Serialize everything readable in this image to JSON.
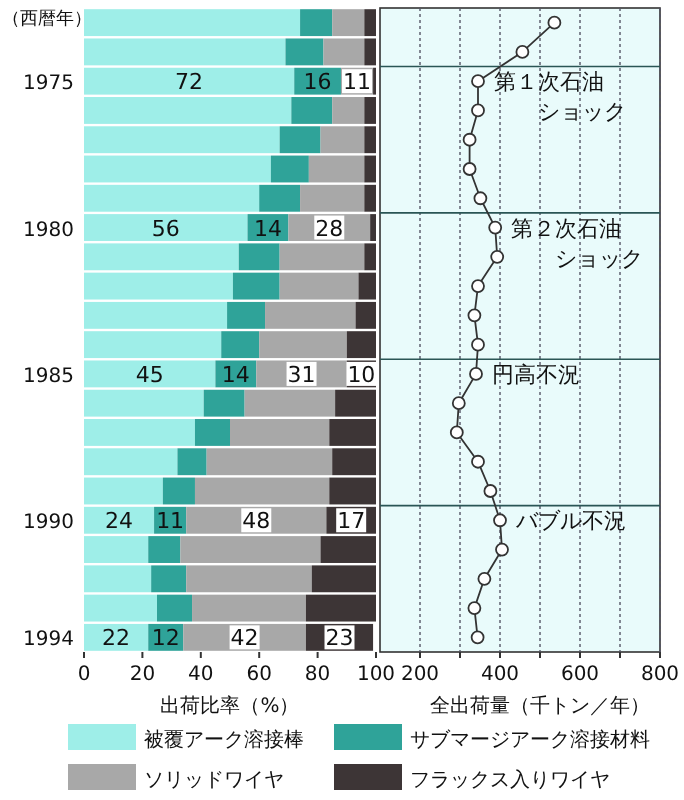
{
  "chart_data": [
    {
      "type": "bar",
      "orientation": "horizontal",
      "stacked": true,
      "ylabel": "（西暦年）",
      "xlabel": "出荷比率（%）",
      "categories": [
        null,
        null,
        "1975",
        null,
        null,
        null,
        null,
        "1980",
        null,
        null,
        null,
        null,
        "1985",
        null,
        null,
        null,
        null,
        "1990",
        null,
        null,
        null,
        "1994"
      ],
      "xlim": [
        0,
        100
      ],
      "xticks": [
        0,
        20,
        40,
        60,
        80,
        100
      ],
      "legend": "bottom",
      "series": [
        {
          "name": "被覆アーク溶接棒",
          "color": "#9eeee8",
          "values": [
            74,
            69,
            72,
            71,
            67,
            64,
            60,
            56,
            53,
            51,
            49,
            47,
            45,
            41,
            38,
            32,
            27,
            24,
            22,
            23,
            25,
            22
          ],
          "value_labels": [
            null,
            null,
            "72",
            null,
            null,
            null,
            null,
            "56",
            null,
            null,
            null,
            null,
            "45",
            null,
            null,
            null,
            null,
            "24",
            null,
            null,
            null,
            "22"
          ]
        },
        {
          "name": "サブマージアーク溶接材料",
          "color": "#2fa399",
          "values": [
            11,
            13,
            16,
            14,
            14,
            13,
            14,
            14,
            14,
            16,
            13,
            13,
            14,
            14,
            12,
            10,
            11,
            11,
            11,
            12,
            12,
            12
          ],
          "value_labels": [
            null,
            null,
            "16",
            null,
            null,
            null,
            null,
            "14",
            null,
            null,
            null,
            null,
            "14",
            null,
            null,
            null,
            null,
            "11",
            null,
            null,
            null,
            "12"
          ]
        },
        {
          "name": "ソリッドワイヤ",
          "color": "#a8a8a8",
          "values": [
            11,
            14,
            11,
            11,
            15,
            19,
            22,
            28,
            29,
            27,
            31,
            30,
            31,
            31,
            34,
            43,
            46,
            48,
            48,
            43,
            39,
            42
          ],
          "value_labels": [
            null,
            null,
            "11",
            null,
            null,
            null,
            null,
            "28",
            null,
            null,
            null,
            null,
            "31",
            null,
            null,
            null,
            null,
            "48",
            null,
            null,
            null,
            "42"
          ]
        },
        {
          "name": "フラックス入りワイヤ",
          "color": "#3d3536",
          "values": [
            4,
            4,
            1,
            4,
            4,
            4,
            4,
            2,
            4,
            6,
            7,
            10,
            10,
            14,
            16,
            15,
            16,
            17,
            19,
            22,
            24,
            23
          ],
          "value_labels": [
            null,
            null,
            null,
            null,
            null,
            null,
            null,
            null,
            null,
            null,
            null,
            null,
            "10",
            null,
            null,
            null,
            null,
            "17",
            null,
            null,
            null,
            "23"
          ]
        }
      ]
    },
    {
      "type": "line",
      "orientation": "horizontal",
      "xlabel": "全出荷量（千トン／年）",
      "marker": "circle",
      "grid": true,
      "tick_labels": "x",
      "categories": [
        null,
        null,
        "1975",
        null,
        null,
        null,
        null,
        "1980",
        null,
        null,
        null,
        null,
        "1985",
        null,
        null,
        null,
        null,
        "1990",
        null,
        null,
        null,
        "1994"
      ],
      "values": [
        536,
        456,
        345,
        345,
        324,
        324,
        351,
        388,
        393,
        345,
        336,
        345,
        340,
        297,
        292,
        345,
        376,
        400,
        405,
        361,
        336,
        344
      ],
      "color": "#333333",
      "xlim": [
        100,
        800
      ],
      "xticks": [
        200,
        {
          "value": 300,
          "label": null
        },
        400,
        {
          "value": 500,
          "label": null
        },
        600,
        {
          "value": 700,
          "label": null
        },
        800
      ],
      "annotations": [
        {
          "text": "第１次石油ショック",
          "x": 345,
          "y": "1975"
        },
        {
          "text": "第２次石油ショック",
          "x": 388,
          "y": "1980"
        },
        {
          "text": "円高不況",
          "x": 340,
          "y": "1985"
        },
        {
          "text": "バブル不況",
          "x": 400,
          "y": "1990"
        }
      ]
    }
  ]
}
